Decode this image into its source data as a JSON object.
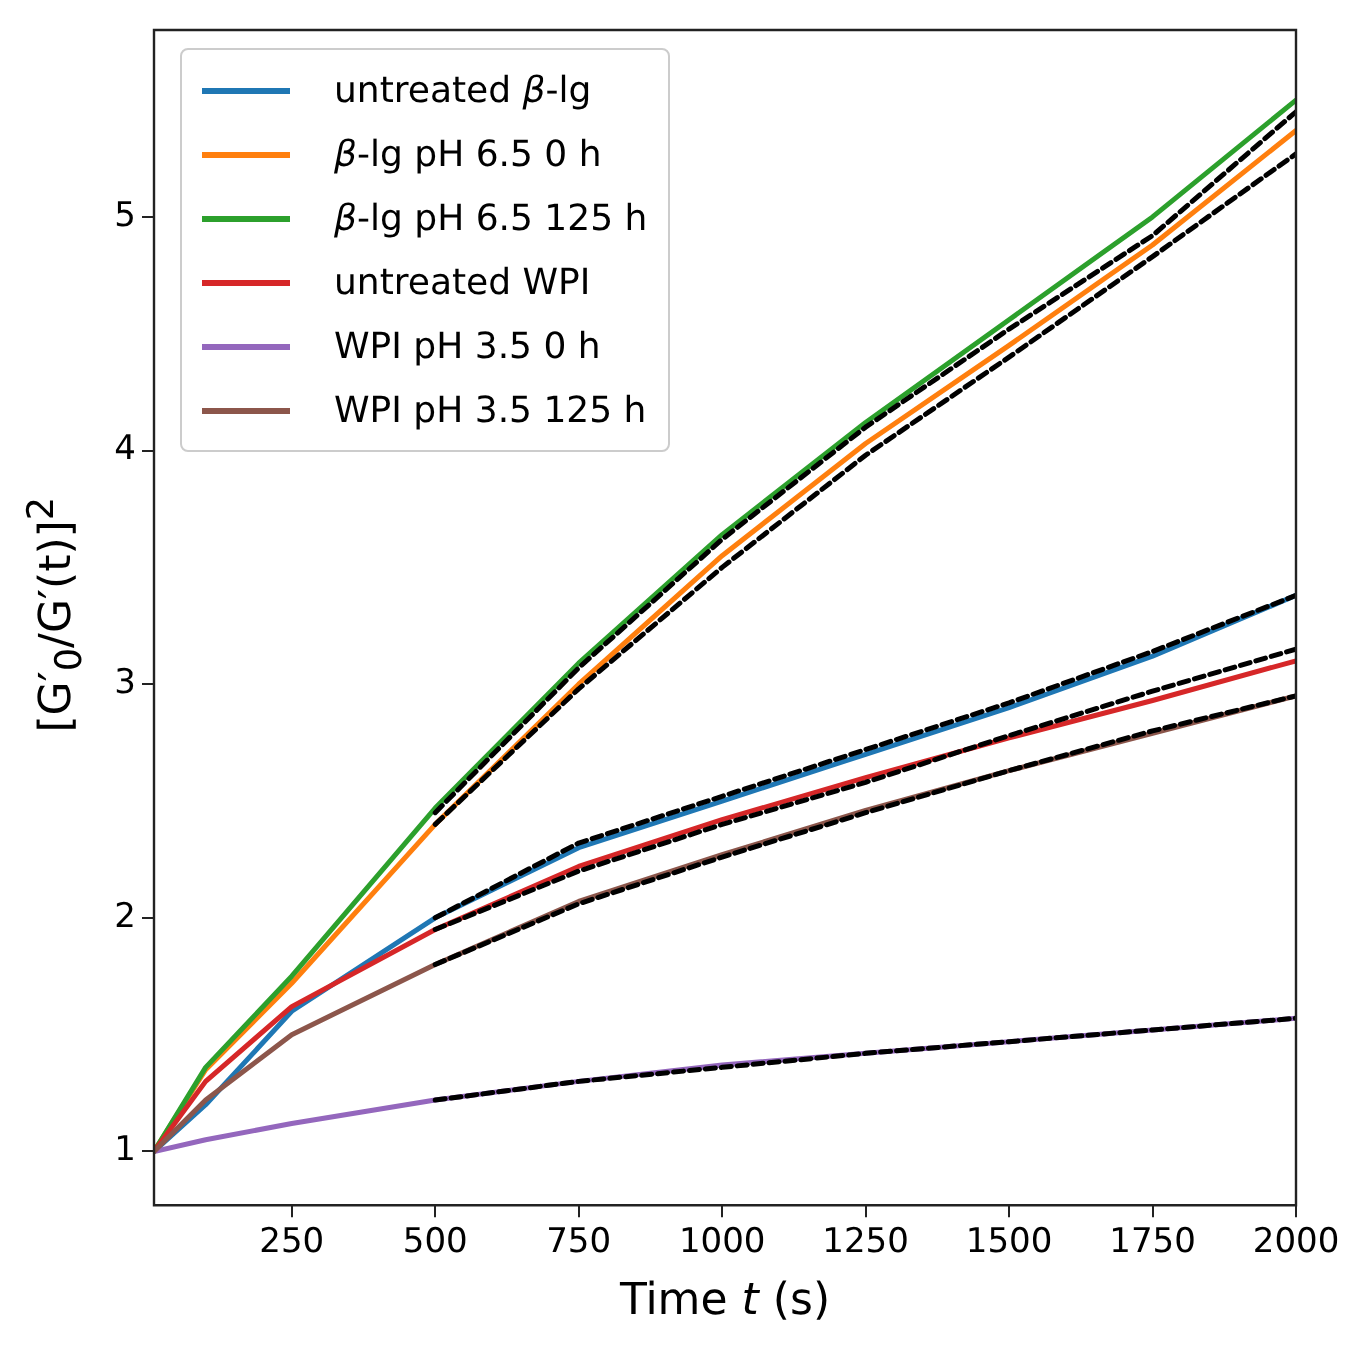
{
  "chart_data": {
    "type": "line",
    "xlabel": "Time t (s)",
    "ylabel": "[G′$_{0}$/G′(t)]$^{2}$",
    "x": [
      10,
      100,
      250,
      500,
      750,
      1000,
      1250,
      1500,
      1750,
      2000
    ],
    "xlim": [
      10,
      2000
    ],
    "xticks": [
      250,
      500,
      750,
      1000,
      1250,
      1500,
      1750,
      2000
    ],
    "ylim": [
      0.77,
      5.8
    ],
    "yticks": [
      1,
      2,
      3,
      4,
      5
    ],
    "grid": false,
    "legend": "top left",
    "marker": "none",
    "series": [
      {
        "name": "untreated β-lg",
        "color": "#1f77b4",
        "values": [
          1,
          1.2,
          1.6,
          2.0,
          2.3,
          2.5,
          2.7,
          2.9,
          3.12,
          3.38
        ]
      },
      {
        "name": "β-lg pH 6.5 0 h",
        "color": "#ff7f0e",
        "values": [
          1,
          1.35,
          1.72,
          2.4,
          3.0,
          3.55,
          4.03,
          4.45,
          4.88,
          5.37
        ]
      },
      {
        "name": "β-lg pH 6.5 125 h",
        "color": "#2ca02c",
        "values": [
          1,
          1.36,
          1.75,
          2.47,
          3.09,
          3.64,
          4.12,
          4.56,
          5.0,
          5.5
        ]
      },
      {
        "name": "untreated WPI",
        "color": "#d62728",
        "values": [
          1,
          1.3,
          1.62,
          1.95,
          2.22,
          2.42,
          2.6,
          2.77,
          2.93,
          3.1
        ]
      },
      {
        "name": "WPI pH 3.5 0 h",
        "color": "#9467bd",
        "values": [
          1,
          1.05,
          1.12,
          1.22,
          1.3,
          1.37,
          1.42,
          1.47,
          1.52,
          1.57
        ]
      },
      {
        "name": "WPI pH 3.5 125 h",
        "color": "#8c564b",
        "values": [
          1,
          1.22,
          1.5,
          1.8,
          2.07,
          2.27,
          2.46,
          2.63,
          2.79,
          2.95
        ]
      },
      {
        "type": "line",
        "color": "#000000",
        "line_style": "dashed",
        "x": [
          500,
          750,
          1000,
          1250,
          1500,
          1750,
          2000
        ],
        "values": [
          2.45,
          3.07,
          3.62,
          4.1,
          4.52,
          4.92,
          5.45
        ]
      },
      {
        "type": "line",
        "color": "#000000",
        "line_style": "dashed",
        "x": [
          500,
          750,
          1000,
          1250,
          1500,
          1750,
          2000
        ],
        "values": [
          2.4,
          2.98,
          3.5,
          3.98,
          4.4,
          4.83,
          5.27
        ]
      },
      {
        "type": "line",
        "color": "#000000",
        "line_style": "dashed",
        "x": [
          500,
          750,
          1000,
          1250,
          1500,
          1750,
          2000
        ],
        "values": [
          2.0,
          2.32,
          2.52,
          2.72,
          2.92,
          3.14,
          3.38
        ]
      },
      {
        "type": "line",
        "color": "#000000",
        "line_style": "dashed",
        "x": [
          500,
          750,
          1000,
          1250,
          1500,
          1750,
          2000
        ],
        "values": [
          1.95,
          2.2,
          2.4,
          2.58,
          2.78,
          2.97,
          3.15
        ]
      },
      {
        "type": "line",
        "color": "#000000",
        "line_style": "dashed",
        "x": [
          500,
          750,
          1000,
          1250,
          1500,
          1750,
          2000
        ],
        "values": [
          1.8,
          2.06,
          2.26,
          2.45,
          2.63,
          2.8,
          2.95
        ]
      },
      {
        "type": "line",
        "color": "#000000",
        "line_style": "dashed",
        "x": [
          500,
          750,
          1000,
          1250,
          1500,
          1750,
          2000
        ],
        "values": [
          1.22,
          1.3,
          1.36,
          1.42,
          1.47,
          1.52,
          1.57
        ]
      }
    ]
  }
}
